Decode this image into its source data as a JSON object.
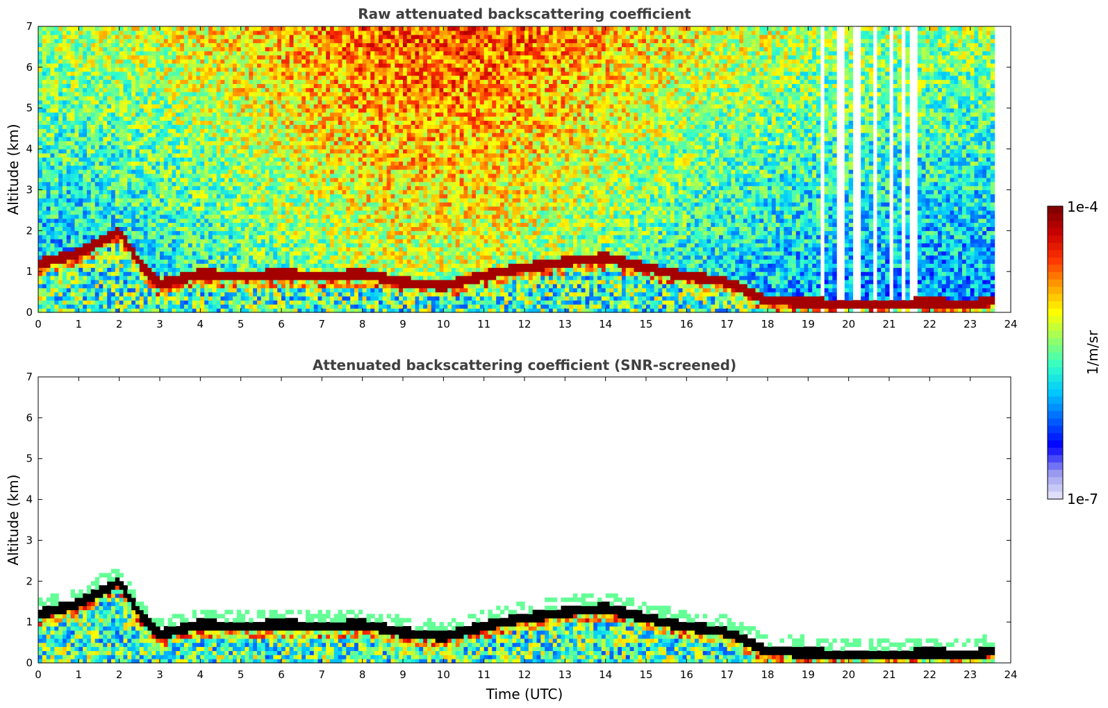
{
  "chart_data": [
    {
      "type": "heatmap",
      "title": "Raw attenuated backscattering coefficient",
      "xlabel": "",
      "ylabel": "Altitude (km)",
      "xlim": [
        0,
        24
      ],
      "ylim": [
        0,
        7
      ],
      "xticks": [
        "0",
        "1",
        "2",
        "3",
        "4",
        "5",
        "6",
        "7",
        "8",
        "9",
        "10",
        "11",
        "12",
        "13",
        "14",
        "15",
        "16",
        "17",
        "18",
        "19",
        "20",
        "21",
        "22",
        "23",
        "24"
      ],
      "yticks": [
        "0",
        "1",
        "2",
        "3",
        "4",
        "5",
        "6",
        "7"
      ],
      "data_end_time": 23.65,
      "screened": false,
      "layer_altitude_km": {
        "time": [
          0,
          1,
          2,
          2.5,
          3,
          4,
          5,
          6,
          7,
          8,
          9,
          10,
          11,
          12,
          13,
          14,
          15,
          16,
          17,
          18,
          19,
          20,
          21,
          22,
          23,
          23.6
        ],
        "altitude": [
          1.2,
          1.45,
          2.0,
          1.2,
          0.7,
          0.95,
          0.9,
          0.95,
          0.9,
          0.95,
          0.75,
          0.65,
          0.9,
          1.1,
          1.25,
          1.35,
          1.1,
          0.9,
          0.75,
          0.3,
          0.25,
          0.2,
          0.2,
          0.25,
          0.2,
          0.3
        ]
      },
      "missing_time_bands": [
        [
          19.3,
          19.45
        ],
        [
          19.75,
          19.9
        ],
        [
          20.15,
          20.3
        ],
        [
          20.6,
          20.7
        ],
        [
          21.0,
          21.1
        ],
        [
          21.3,
          21.4
        ],
        [
          21.55,
          21.7
        ]
      ]
    },
    {
      "type": "heatmap",
      "title": "Attenuated backscattering coefficient (SNR-screened)",
      "xlabel": "Time (UTC)",
      "ylabel": "Altitude (km)",
      "xlim": [
        0,
        24
      ],
      "ylim": [
        0,
        7
      ],
      "xticks": [
        "0",
        "1",
        "2",
        "3",
        "4",
        "5",
        "6",
        "7",
        "8",
        "9",
        "10",
        "11",
        "12",
        "13",
        "14",
        "15",
        "16",
        "17",
        "18",
        "19",
        "20",
        "21",
        "22",
        "23",
        "24"
      ],
      "yticks": [
        "0",
        "1",
        "2",
        "3",
        "4",
        "5",
        "6",
        "7"
      ],
      "data_end_time": 23.65,
      "screened": true
    }
  ],
  "colorbar": {
    "label": "1/m/sr",
    "max_label": "1e-4",
    "min_label": "1e-7",
    "colormap": [
      "#ebebfa",
      "#9696f0",
      "#0000ff",
      "#0064ff",
      "#00c8ff",
      "#32ffc8",
      "#96ff64",
      "#ffff00",
      "#ffa000",
      "#ff3200",
      "#c80000",
      "#780000"
    ]
  }
}
